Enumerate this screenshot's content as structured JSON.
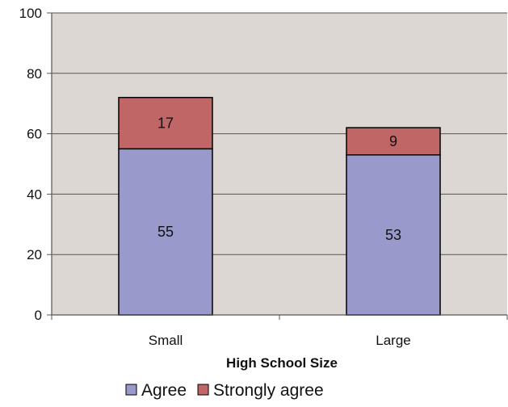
{
  "chart_data": {
    "type": "bar",
    "stacked": true,
    "categories": [
      "Small",
      "Large"
    ],
    "series": [
      {
        "name": "Agree",
        "values": [
          55,
          53
        ],
        "color": "#9999cc"
      },
      {
        "name": "Strongly agree",
        "values": [
          17,
          9
        ],
        "color": "#c06666"
      }
    ],
    "xlabel": "High School Size",
    "ylabel": "",
    "ylim": [
      0,
      100
    ],
    "yticks": [
      0,
      20,
      40,
      60,
      80,
      100
    ],
    "grid": true,
    "plot_background": "#dcd7d2",
    "legend_position": "bottom"
  }
}
